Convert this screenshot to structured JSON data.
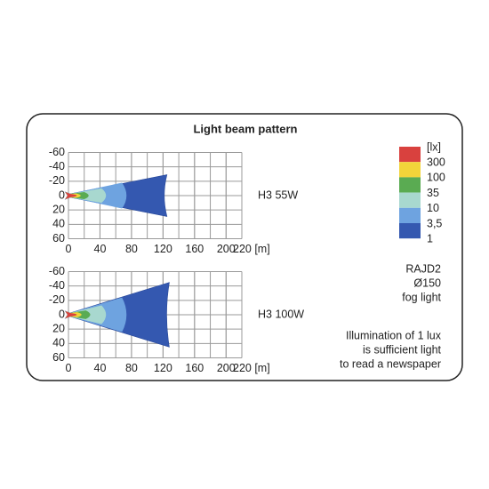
{
  "title": "Light beam pattern",
  "plots": [
    {
      "name": "H3 55W",
      "xticks": [
        0,
        40,
        80,
        120,
        160,
        200,
        {
          "value": 220,
          "label": "220 [m]"
        }
      ],
      "yticks": [
        -60,
        -40,
        -20,
        0,
        20,
        40,
        60
      ]
    },
    {
      "name": "H3 100W",
      "xticks": [
        0,
        40,
        80,
        120,
        160,
        200,
        {
          "value": 220,
          "label": "220 [m]"
        }
      ],
      "yticks": [
        -60,
        -40,
        -20,
        0,
        20,
        40,
        60
      ]
    }
  ],
  "legend": {
    "unit": "[lx]",
    "levels": [
      {
        "label": "300",
        "color": "#d9413e"
      },
      {
        "label": "100",
        "color": "#f2d43a"
      },
      {
        "label": "35",
        "color": "#5aab52"
      },
      {
        "label": "10",
        "color": "#a8d8cf"
      },
      {
        "label": "3,5",
        "color": "#6ea3e0"
      },
      {
        "label": "1",
        "color": "#3458b0"
      }
    ]
  },
  "product": [
    "RAJD2",
    "Ø150",
    "fog light"
  ],
  "note": [
    "Illumination of 1 lux",
    "is sufficient light",
    "to read a newspaper"
  ]
}
